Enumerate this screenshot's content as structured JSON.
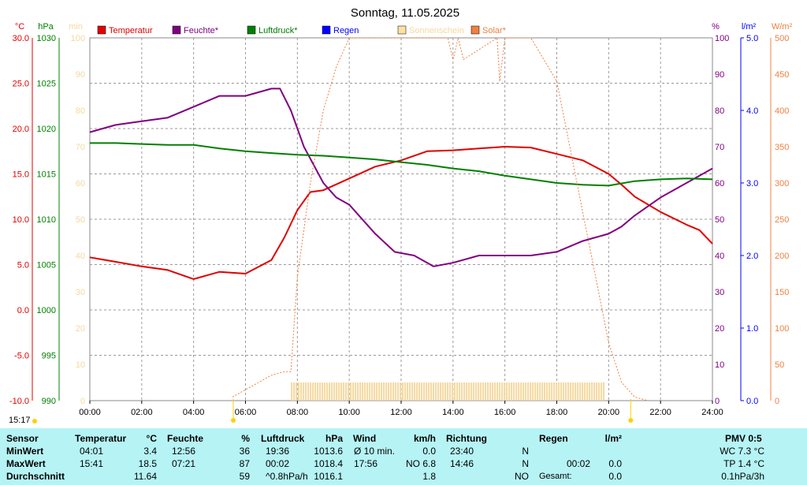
{
  "title": "Sonntag, 11.05.2025",
  "time_left": "15:17",
  "units": {
    "c": "°C",
    "hpa": "hPa",
    "min": "min",
    "pct": "%",
    "lm2": "l/m²",
    "wm2": "W/m²"
  },
  "legend": [
    {
      "label": "Temperatur",
      "color": "#e00000"
    },
    {
      "label": "Feuchte*",
      "color": "#800080"
    },
    {
      "label": "Luftdruck*",
      "color": "#008000"
    },
    {
      "label": "Regen",
      "color": "#0000ff"
    },
    {
      "label": "Sonnenschein",
      "color": "#ffe0a0"
    },
    {
      "label": "Solar*",
      "color": "#f08040"
    }
  ],
  "colors": {
    "temp": "#e00000",
    "hum": "#800080",
    "press": "#008000",
    "rain": "#0000ff",
    "sun": "#f5d9a0",
    "solar": "#f08040",
    "table_bg": "#b6f3f5"
  },
  "chart_data": {
    "type": "line",
    "x_ticks": [
      "00:00",
      "02:00",
      "04:00",
      "06:00",
      "08:00",
      "10:00",
      "12:00",
      "14:00",
      "16:00",
      "18:00",
      "20:00",
      "22:00",
      "24:00"
    ],
    "x_range": [
      0,
      24
    ],
    "axes": {
      "temp_c": {
        "range": [
          -10,
          30
        ],
        "ticks": [
          "30.0",
          "25.0",
          "20.0",
          "15.0",
          "10.0",
          "5.0",
          "0.0",
          "-5.0",
          "-10.0"
        ]
      },
      "pressure_hpa": {
        "range": [
          990,
          1030
        ],
        "ticks": [
          "1030",
          "1025",
          "1020",
          "1015",
          "1010",
          "1005",
          "1000",
          "995",
          "990"
        ]
      },
      "sunshine_min": {
        "range": [
          0,
          100
        ],
        "ticks": [
          "100",
          "90",
          "80",
          "70",
          "60",
          "50",
          "40",
          "30",
          "20",
          "10",
          "0"
        ]
      },
      "humidity_pct": {
        "range": [
          0,
          100
        ],
        "ticks": [
          "100",
          "90",
          "80",
          "70",
          "60",
          "50",
          "40",
          "30",
          "20",
          "10",
          "0"
        ]
      },
      "rain_lm2": {
        "range": [
          0,
          5
        ],
        "ticks": [
          "5.0",
          "4.0",
          "3.0",
          "2.0",
          "1.0",
          "0.0"
        ]
      },
      "solar_wm2": {
        "range": [
          0,
          500
        ],
        "ticks": [
          "500",
          "450",
          "400",
          "350",
          "300",
          "250",
          "200",
          "150",
          "100",
          "50",
          "0"
        ]
      }
    },
    "series": [
      {
        "name": "Temperatur",
        "axis": "temp_c",
        "x": [
          0,
          1,
          2,
          3,
          4,
          4.5,
          5,
          6,
          7,
          7.5,
          8,
          8.5,
          9,
          10,
          11,
          12,
          13,
          14,
          15,
          16,
          17,
          18,
          19,
          20,
          20.5,
          21,
          22,
          23,
          23.5,
          24
        ],
        "y": [
          5.8,
          5.3,
          4.8,
          4.4,
          3.4,
          3.8,
          4.2,
          4.0,
          5.5,
          8.0,
          11.0,
          13.0,
          13.2,
          14.5,
          15.8,
          16.5,
          17.5,
          17.6,
          17.8,
          18.0,
          17.9,
          17.2,
          16.5,
          15.0,
          13.8,
          12.5,
          10.8,
          9.4,
          8.8,
          7.3
        ]
      },
      {
        "name": "Feuchte*",
        "axis": "humidity_pct",
        "x": [
          0,
          1,
          2,
          3,
          4,
          5,
          6,
          7,
          7.33,
          7.75,
          8.25,
          9,
          9.5,
          10,
          11,
          11.75,
          12.5,
          13.25,
          14,
          15,
          16,
          17,
          18,
          19,
          19.5,
          20,
          20.5,
          21,
          22,
          23,
          24
        ],
        "y": [
          74,
          76,
          77,
          78,
          81,
          84,
          84,
          86,
          86,
          80,
          70,
          60,
          56,
          54,
          46,
          41,
          40,
          37,
          38,
          40,
          40,
          40,
          41,
          44,
          45,
          46,
          48,
          51,
          56,
          60,
          64
        ]
      },
      {
        "name": "Luftdruck*",
        "axis": "pressure_hpa",
        "x": [
          0,
          1,
          2,
          3,
          4,
          5,
          6,
          7,
          8,
          9,
          10,
          11,
          12,
          13,
          14,
          15,
          16,
          17,
          18,
          19,
          20,
          21,
          22,
          23,
          24
        ],
        "y": [
          1018.4,
          1018.4,
          1018.3,
          1018.2,
          1018.2,
          1017.8,
          1017.5,
          1017.3,
          1017.1,
          1017.0,
          1016.8,
          1016.6,
          1016.3,
          1016.0,
          1015.6,
          1015.3,
          1014.8,
          1014.4,
          1014.0,
          1013.8,
          1013.7,
          1014.2,
          1014.4,
          1014.5,
          1014.4
        ]
      },
      {
        "name": "Solar*",
        "axis": "solar_wm2",
        "x": [
          5.5,
          6,
          6.5,
          7,
          7.5,
          7.75,
          8,
          8.5,
          9,
          9.5,
          10,
          10.2,
          13.8,
          14.0,
          14.2,
          14.4,
          15.7,
          15.8,
          16,
          17,
          18,
          18.5,
          19,
          19.5,
          20,
          20.5,
          21,
          21.5
        ],
        "y": [
          5,
          15,
          25,
          35,
          40,
          40,
          170,
          300,
          400,
          460,
          500,
          510,
          510,
          470,
          500,
          470,
          500,
          440,
          520,
          550,
          440,
          350,
          260,
          170,
          80,
          25,
          5,
          0
        ]
      },
      {
        "name": "Sonnenschein",
        "axis": "sunshine_min",
        "type": "bar",
        "x_start": 7.75,
        "x_end": 19.8,
        "y": 5
      }
    ]
  },
  "table": {
    "headers": {
      "sensor": "Sensor",
      "temp": "Temperatur",
      "temp_unit": "°C",
      "hum": "Feuchte",
      "hum_unit": "%",
      "press": "Luftdruck",
      "press_unit": "hPa",
      "wind": "Wind",
      "wind_unit": "km/h",
      "dir": "Richtung",
      "rain": "Regen",
      "rain_unit": "l/m²",
      "pmv": "PMV 0:5"
    },
    "rows": [
      {
        "label": "MinWert",
        "temp_time": "04:01",
        "temp": "3.4",
        "hum_time": "12:56",
        "hum": "36",
        "press_time": "19:36",
        "press": "1013.6",
        "wind_time": "Ø 10 min.",
        "wind": "0.0",
        "dir_time": "23:40",
        "dir": "N",
        "rain_time": "",
        "rain": "",
        "pmv": "WC 7.3 °C"
      },
      {
        "label": "MaxWert",
        "temp_time": "15:41",
        "temp": "18.5",
        "hum_time": "07:21",
        "hum": "87",
        "press_time": "00:02",
        "press": "1018.4",
        "wind_time": "17:56",
        "wind": "NO 6.8",
        "dir_time": "14:46",
        "dir": "N",
        "rain_time": "00:02",
        "rain": "0.0",
        "pmv": "TP 1.4 °C"
      },
      {
        "label": "Durchschnitt",
        "temp_time": "",
        "temp": "11.64",
        "hum_time": "",
        "hum": "59",
        "press_time": "^0.8hPa/h",
        "press": "1016.1",
        "wind_time": "",
        "wind": "1.8",
        "dir_time": "",
        "dir": "NO",
        "rain_time": "Gesamt:",
        "rain": "0.0",
        "pmv": "0.1hPa/3h"
      }
    ]
  }
}
